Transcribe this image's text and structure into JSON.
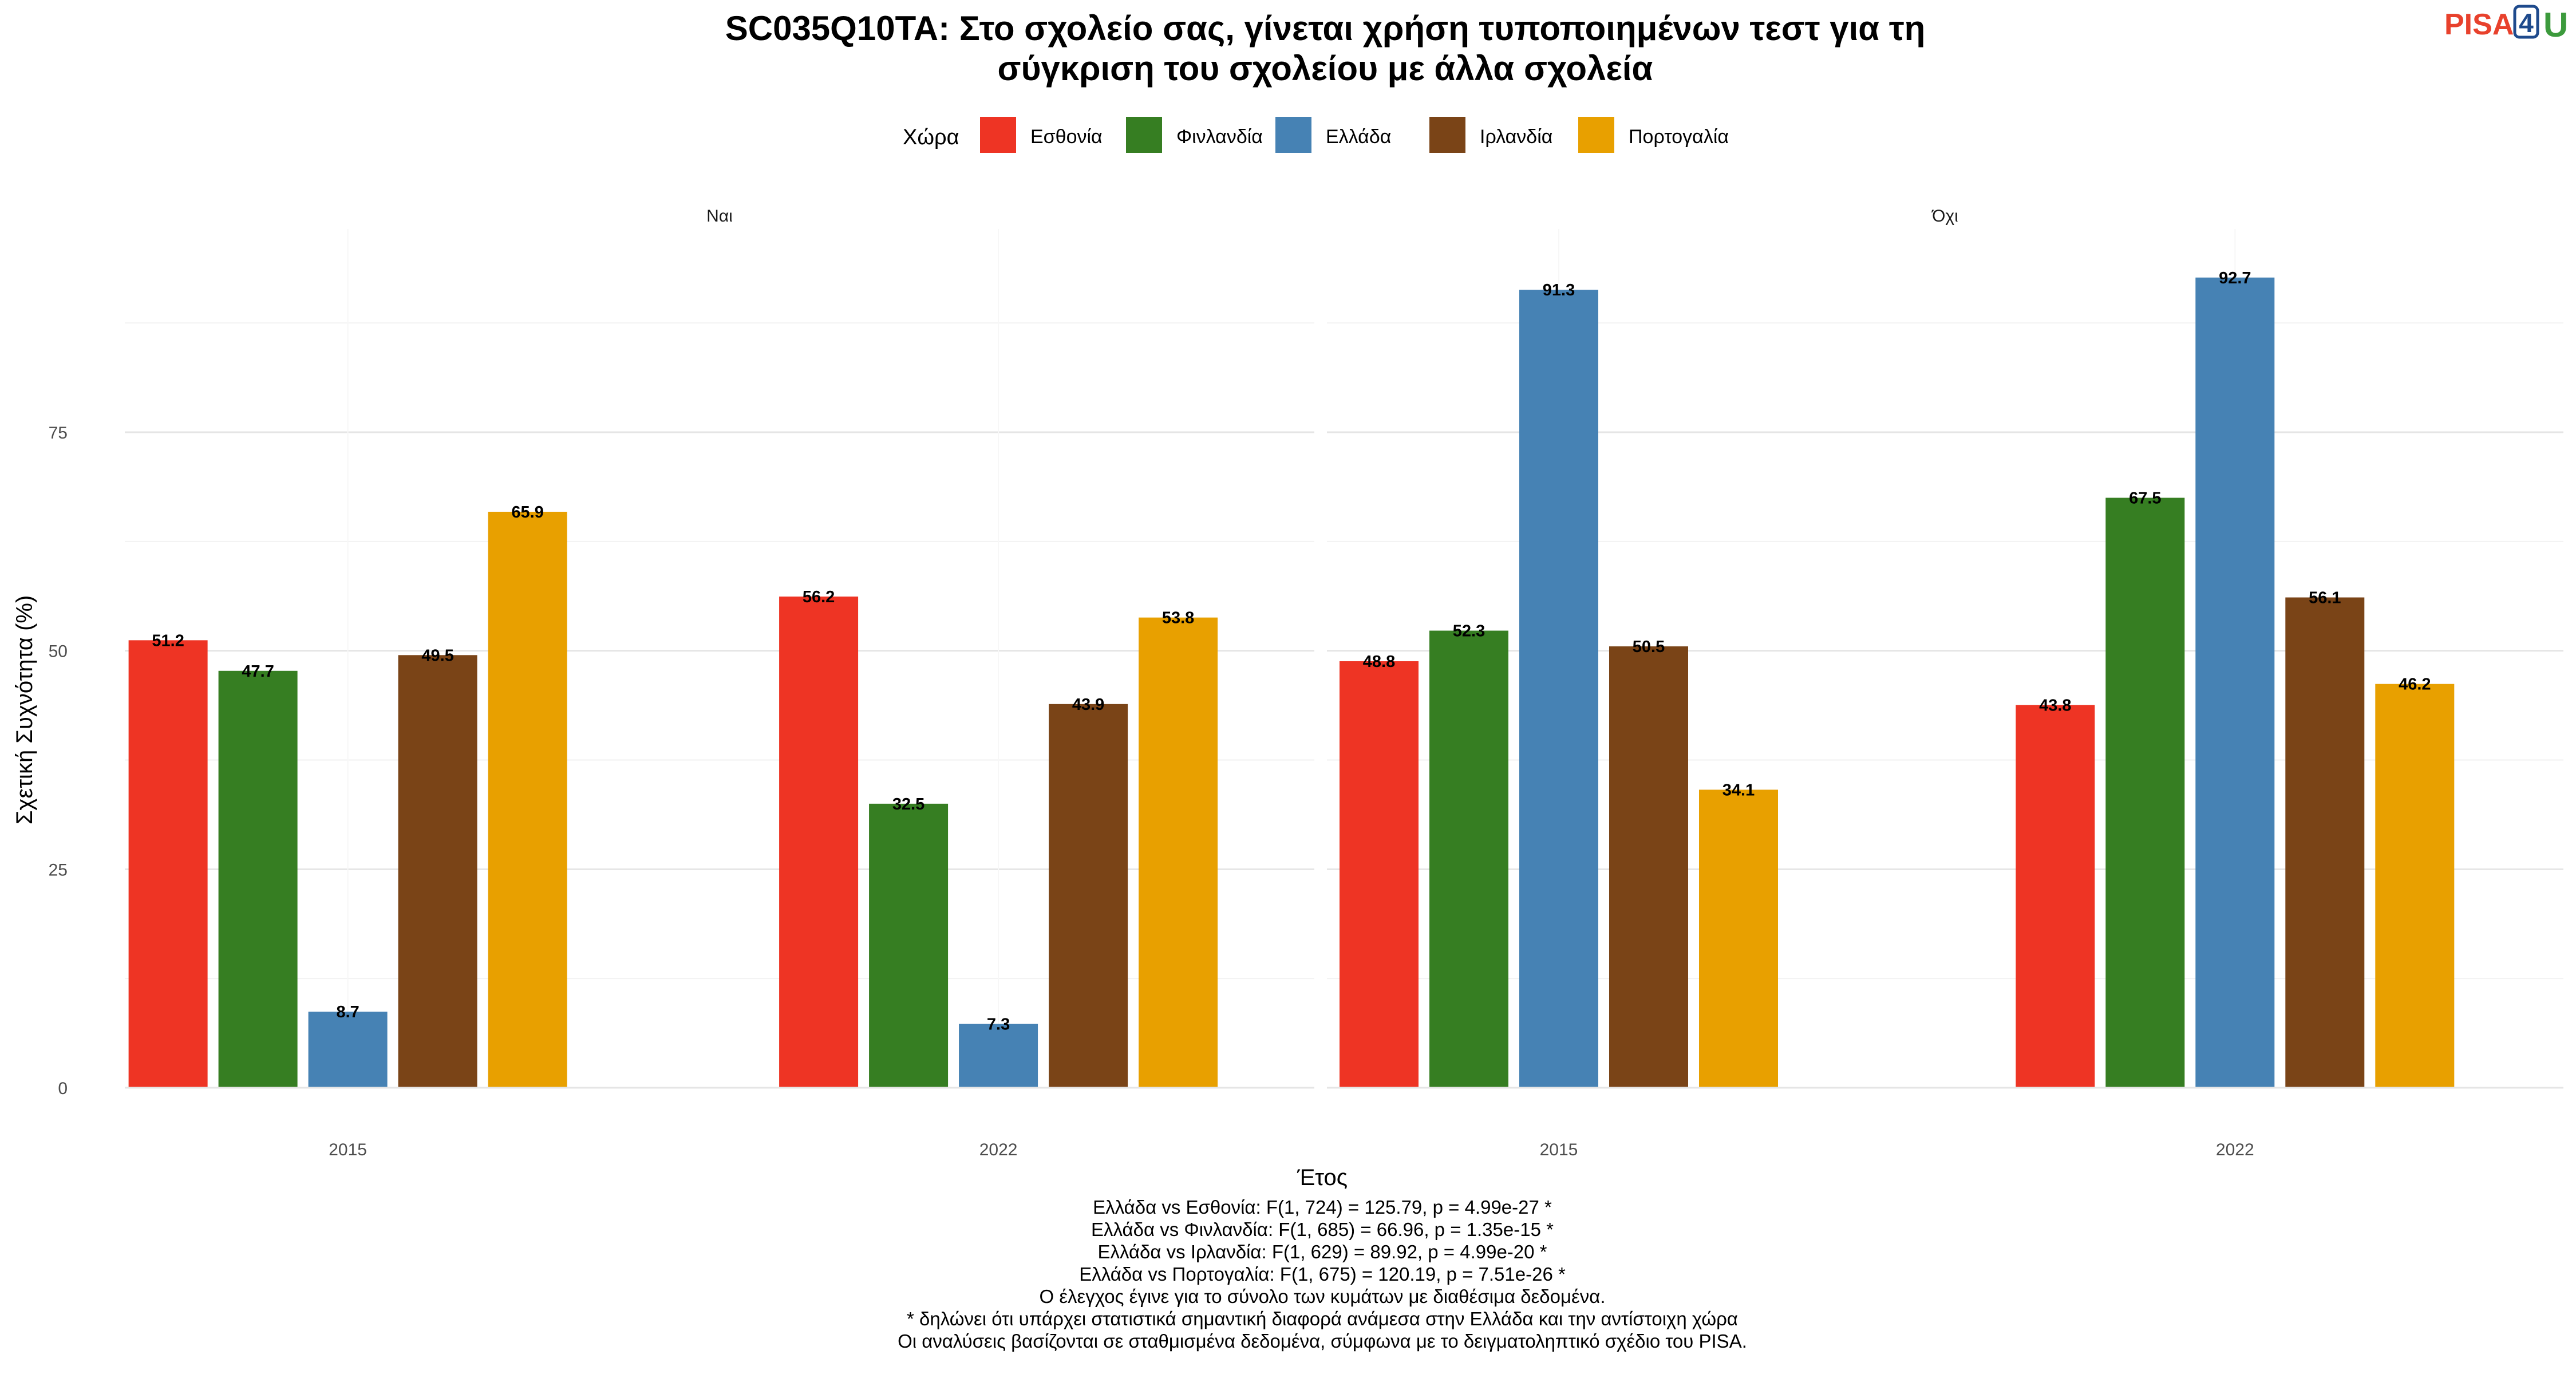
{
  "chart_data": {
    "type": "bar",
    "title_lines": [
      "SC035Q10TA: Στο σχολείο σας, γίνεται χρήση τυποποιημένων τεστ για τη",
      "σύγκριση του σχολείου με άλλα σχολεία"
    ],
    "xlabel": "Έτος",
    "ylabel": "Σχετική Συχνότητα (%)",
    "ylim": [
      0,
      100
    ],
    "yticks": [
      0,
      25,
      50,
      75
    ],
    "grid": true,
    "legend": {
      "title": "Χώρα",
      "placement": "top-center",
      "entries": [
        {
          "name": "Εσθονία",
          "color": "#EE3424"
        },
        {
          "name": "Φινλανδία",
          "color": "#367E22"
        },
        {
          "name": "Ελλάδα",
          "color": "#4682B4"
        },
        {
          "name": "Ιρλανδία",
          "color": "#7A4417"
        },
        {
          "name": "Πορτογαλία",
          "color": "#E8A000"
        }
      ]
    },
    "categories": [
      "2015",
      "2022"
    ],
    "facets": [
      {
        "label": "Ναι",
        "series": [
          {
            "name": "Εσθονία",
            "values": [
              51.2,
              56.2
            ],
            "labels": [
              "51.2",
              "56.2"
            ]
          },
          {
            "name": "Φινλανδία",
            "values": [
              47.7,
              32.5
            ],
            "labels": [
              "47.7",
              "32.5"
            ]
          },
          {
            "name": "Ελλάδα",
            "values": [
              8.7,
              7.3
            ],
            "labels": [
              "8.7",
              "7.3"
            ]
          },
          {
            "name": "Ιρλανδία",
            "values": [
              49.5,
              43.9
            ],
            "labels": [
              "49.5",
              "43.9"
            ]
          },
          {
            "name": "Πορτογαλία",
            "values": [
              65.9,
              53.8
            ],
            "labels": [
              "65.9",
              "53.8"
            ]
          }
        ]
      },
      {
        "label": "Όχι",
        "series": [
          {
            "name": "Εσθονία",
            "values": [
              48.8,
              43.8
            ],
            "labels": [
              "48.8",
              "43.8"
            ]
          },
          {
            "name": "Φινλανδία",
            "values": [
              52.3,
              67.5
            ],
            "labels": [
              "52.3",
              "67.5"
            ]
          },
          {
            "name": "Ελλάδα",
            "values": [
              91.3,
              92.7
            ],
            "labels": [
              "91.3",
              "92.7"
            ]
          },
          {
            "name": "Ιρλανδία",
            "values": [
              50.5,
              56.1
            ],
            "labels": [
              "50.5",
              "56.1"
            ]
          },
          {
            "name": "Πορτογαλία",
            "values": [
              34.1,
              46.2
            ],
            "labels": [
              "34.1",
              "46.2"
            ]
          }
        ]
      }
    ],
    "caption_lines": [
      "Ελλάδα vs Εσθονία: F(1, 724) = 125.79, p = 4.99e-27 *",
      "Ελλάδα vs Φινλανδία: F(1, 685) = 66.96, p = 1.35e-15 *",
      "Ελλάδα vs Ιρλανδία: F(1, 629) = 89.92, p = 4.99e-20 *",
      "Ελλάδα vs Πορτογαλία: F(1, 675) = 120.19, p = 7.51e-26 *",
      "Ο έλεγχος έγινε για το σύνολο των κυμάτων με διαθέσιμα δεδομένα.",
      "* δηλώνει ότι υπάρχει στατιστικά σημαντική διαφορά ανάμεσα στην Ελλάδα και την αντίστοιχη χώρα",
      "Οι αναλύσεις βασίζονται σε σταθμισμένα δεδομένα, σύμφωνα με το δειγματοληπτικό σχέδιο του PISA."
    ]
  },
  "logo": {
    "text_left": "PISA",
    "text_box": "4",
    "text_right": "U",
    "colors": {
      "pisa": "#e8412c",
      "box": "#1e4a8c",
      "u": "#3c9a3c"
    }
  }
}
